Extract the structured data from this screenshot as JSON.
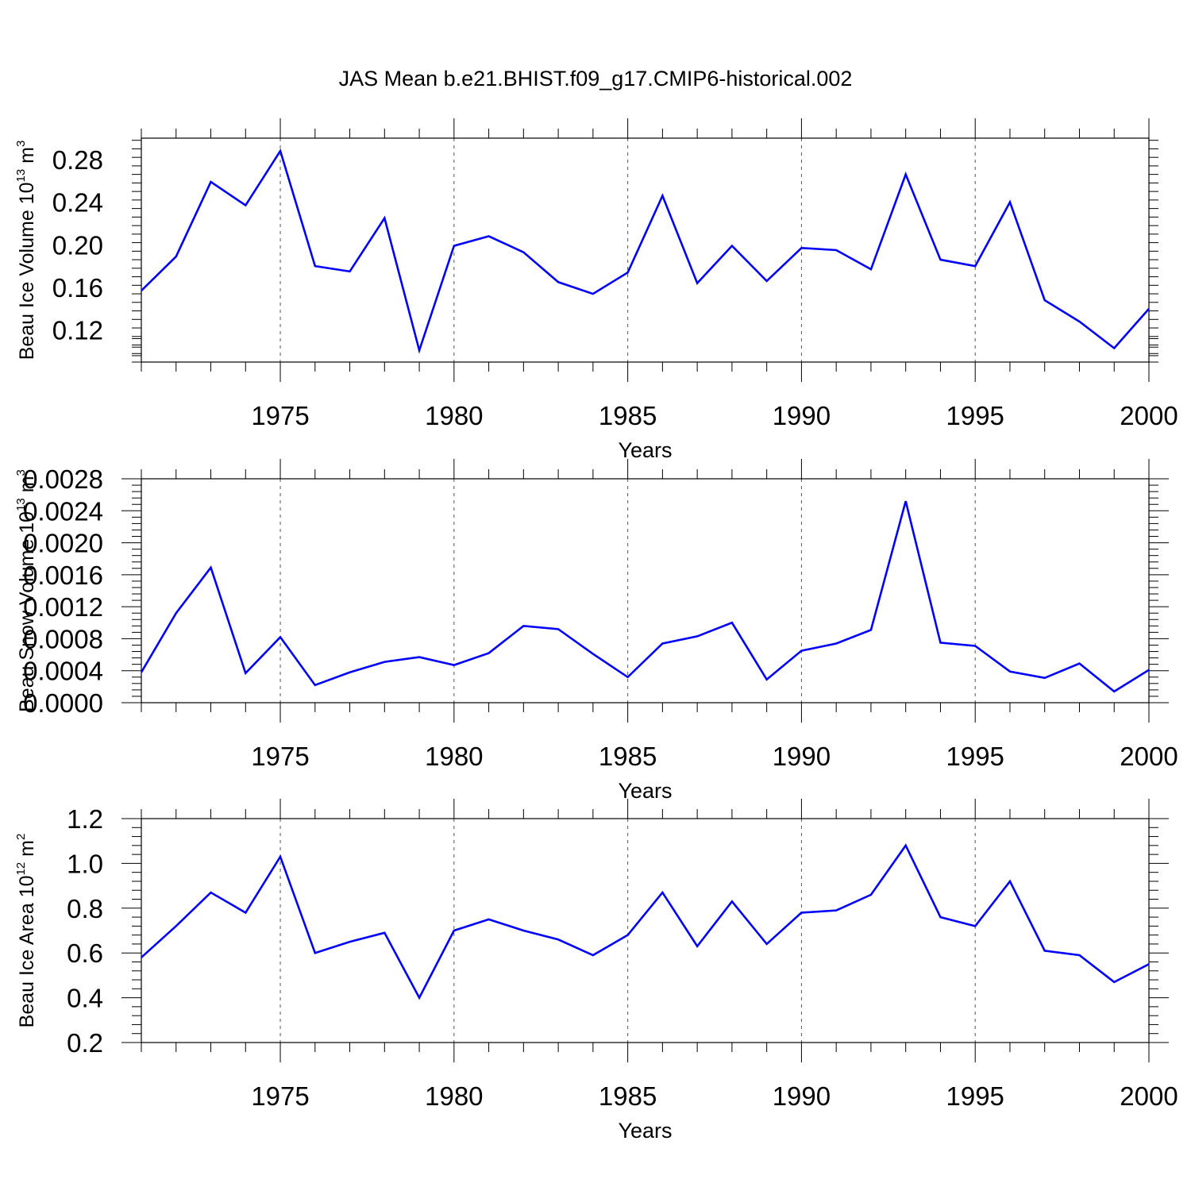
{
  "title": "JAS Mean b.e21.BHIST.f09_g17.CMIP6-historical.002",
  "colors": {
    "line": "#0000ff",
    "axis": "#000000",
    "grid": "#555555"
  },
  "chart_data": [
    {
      "type": "line",
      "xlabel": "Years",
      "ylabel": {
        "text": "Beau Ice Volume 10",
        "sup": "13",
        "unit": " m",
        "unit_sup": "3"
      },
      "xlim": [
        1971,
        2000
      ],
      "ylim": [
        0.09,
        0.3
      ],
      "yticks": [
        0.12,
        0.16,
        0.2,
        0.24,
        0.28
      ],
      "ytick_labels": [
        "0.12",
        "0.16",
        "0.20",
        "0.24",
        "0.28"
      ],
      "xticks": [
        1975,
        1980,
        1985,
        1990,
        1995,
        2000
      ],
      "xtick_labels": [
        "1975",
        "1980",
        "1985",
        "1990",
        "1995",
        "2000"
      ],
      "grid": "vertical dashed at major x ticks",
      "series": [
        {
          "x": [
            1971,
            1972,
            1973,
            1974,
            1975,
            1976,
            1977,
            1978,
            1979,
            1980,
            1981,
            1982,
            1983,
            1984,
            1985,
            1986,
            1987,
            1988,
            1989,
            1990,
            1991,
            1992,
            1993,
            1994,
            1995,
            1996,
            1997,
            1998,
            1999,
            2000
          ],
          "values": [
            0.157,
            0.189,
            0.259,
            0.237,
            0.288,
            0.18,
            0.175,
            0.225,
            0.101,
            0.199,
            0.208,
            0.193,
            0.165,
            0.154,
            0.174,
            0.246,
            0.164,
            0.199,
            0.166,
            0.197,
            0.195,
            0.177,
            0.266,
            0.186,
            0.18,
            0.24,
            0.148,
            0.128,
            0.103,
            0.14
          ]
        }
      ]
    },
    {
      "type": "line",
      "xlabel": "Years",
      "ylabel": {
        "text": "Beau Snow Volume 10",
        "sup": "13",
        "unit": " m",
        "unit_sup": "3"
      },
      "xlim": [
        1971,
        2000
      ],
      "ylim": [
        0.0,
        0.0028
      ],
      "yticks": [
        0.0,
        0.0004,
        0.0008,
        0.0012,
        0.0016,
        0.002,
        0.0024,
        0.0028
      ],
      "ytick_labels": [
        "0.0000",
        "0.0004",
        "0.0008",
        "0.0012",
        "0.0016",
        "0.0020",
        "0.0024",
        "0.0028"
      ],
      "xticks": [
        1975,
        1980,
        1985,
        1990,
        1995,
        2000
      ],
      "xtick_labels": [
        "1975",
        "1980",
        "1985",
        "1990",
        "1995",
        "2000"
      ],
      "grid": "vertical dashed at major x ticks",
      "series": [
        {
          "x": [
            1971,
            1972,
            1973,
            1974,
            1975,
            1976,
            1977,
            1978,
            1979,
            1980,
            1981,
            1982,
            1983,
            1984,
            1985,
            1986,
            1987,
            1988,
            1989,
            1990,
            1991,
            1992,
            1993,
            1994,
            1995,
            1996,
            1997,
            1998,
            1999,
            2000
          ],
          "values": [
            0.00038,
            0.00112,
            0.00169,
            0.00037,
            0.00082,
            0.00022,
            0.00038,
            0.00051,
            0.00057,
            0.00047,
            0.00062,
            0.00096,
            0.00092,
            0.00061,
            0.00032,
            0.00074,
            0.00083,
            0.001,
            0.00029,
            0.00065,
            0.00074,
            0.00091,
            0.00252,
            0.00075,
            0.00071,
            0.00039,
            0.00031,
            0.00049,
            0.00014,
            0.00041
          ]
        }
      ]
    },
    {
      "type": "line",
      "xlabel": "Years",
      "ylabel": {
        "text": "Beau Ice Area 10",
        "sup": "12",
        "unit": " m",
        "unit_sup": "2"
      },
      "xlim": [
        1971,
        2000
      ],
      "ylim": [
        0.2,
        1.2
      ],
      "yticks": [
        0.2,
        0.4,
        0.6,
        0.8,
        1.0,
        1.2
      ],
      "ytick_labels": [
        "0.2",
        "0.4",
        "0.6",
        "0.8",
        "1.0",
        "1.2"
      ],
      "xticks": [
        1975,
        1980,
        1985,
        1990,
        1995,
        2000
      ],
      "xtick_labels": [
        "1975",
        "1980",
        "1985",
        "1990",
        "1995",
        "2000"
      ],
      "grid": "vertical dashed at major x ticks",
      "series": [
        {
          "x": [
            1971,
            1972,
            1973,
            1974,
            1975,
            1976,
            1977,
            1978,
            1979,
            1980,
            1981,
            1982,
            1983,
            1984,
            1985,
            1986,
            1987,
            1988,
            1989,
            1990,
            1991,
            1992,
            1993,
            1994,
            1995,
            1996,
            1997,
            1998,
            1999,
            2000
          ],
          "values": [
            0.58,
            0.72,
            0.87,
            0.78,
            1.03,
            0.6,
            0.65,
            0.69,
            0.4,
            0.7,
            0.75,
            0.7,
            0.66,
            0.59,
            0.68,
            0.87,
            0.63,
            0.83,
            0.64,
            0.78,
            0.79,
            0.86,
            1.08,
            0.76,
            0.72,
            0.92,
            0.61,
            0.59,
            0.47,
            0.55
          ]
        }
      ]
    }
  ]
}
